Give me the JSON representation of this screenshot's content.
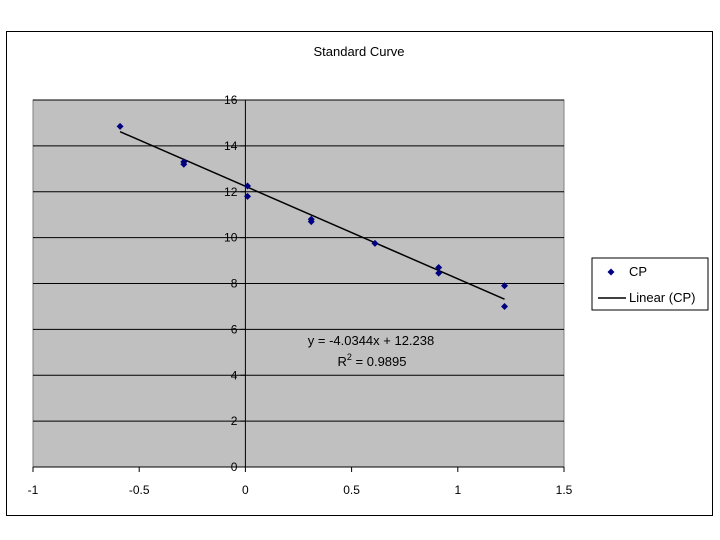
{
  "chart_data": {
    "type": "scatter",
    "title": "Standard Curve",
    "xlabel": "",
    "ylabel": "",
    "xlim": [
      -1,
      1.5
    ],
    "ylim": [
      0,
      16
    ],
    "x_ticks": [
      -1,
      -0.5,
      0,
      0.5,
      1,
      1.5
    ],
    "x_tick_labels": [
      "-1",
      "-0.5",
      "0",
      "0.5",
      "1",
      "1.5"
    ],
    "y_ticks": [
      0,
      2,
      4,
      6,
      8,
      10,
      12,
      14,
      16
    ],
    "y_tick_labels": [
      "0",
      "2",
      "4",
      "6",
      "8",
      "10",
      "12",
      "14",
      "16"
    ],
    "grid": "horizontal",
    "plot_background": "#c0c0c0",
    "legend_position": "right",
    "series": [
      {
        "name": "CP",
        "marker": "diamond",
        "color": "#000080",
        "points": [
          {
            "x": -0.59,
            "y": 14.85
          },
          {
            "x": -0.29,
            "y": 13.3
          },
          {
            "x": -0.29,
            "y": 13.2
          },
          {
            "x": 0.01,
            "y": 12.25
          },
          {
            "x": 0.01,
            "y": 11.8
          },
          {
            "x": 0.31,
            "y": 10.8
          },
          {
            "x": 0.31,
            "y": 10.7
          },
          {
            "x": 0.61,
            "y": 9.75
          },
          {
            "x": 0.91,
            "y": 8.7
          },
          {
            "x": 0.91,
            "y": 8.45
          },
          {
            "x": 1.22,
            "y": 7.9
          },
          {
            "x": 1.22,
            "y": 7.0
          }
        ]
      }
    ],
    "trendline": {
      "name": "Linear (CP)",
      "color": "#000000",
      "slope": -4.0344,
      "intercept": 12.238,
      "x_range": [
        -0.59,
        1.22
      ],
      "equation_label": "y = -4.0344x + 12.238",
      "r2_prefix": "R",
      "r2_sup": "2",
      "r2_value": " = 0.9895"
    }
  }
}
